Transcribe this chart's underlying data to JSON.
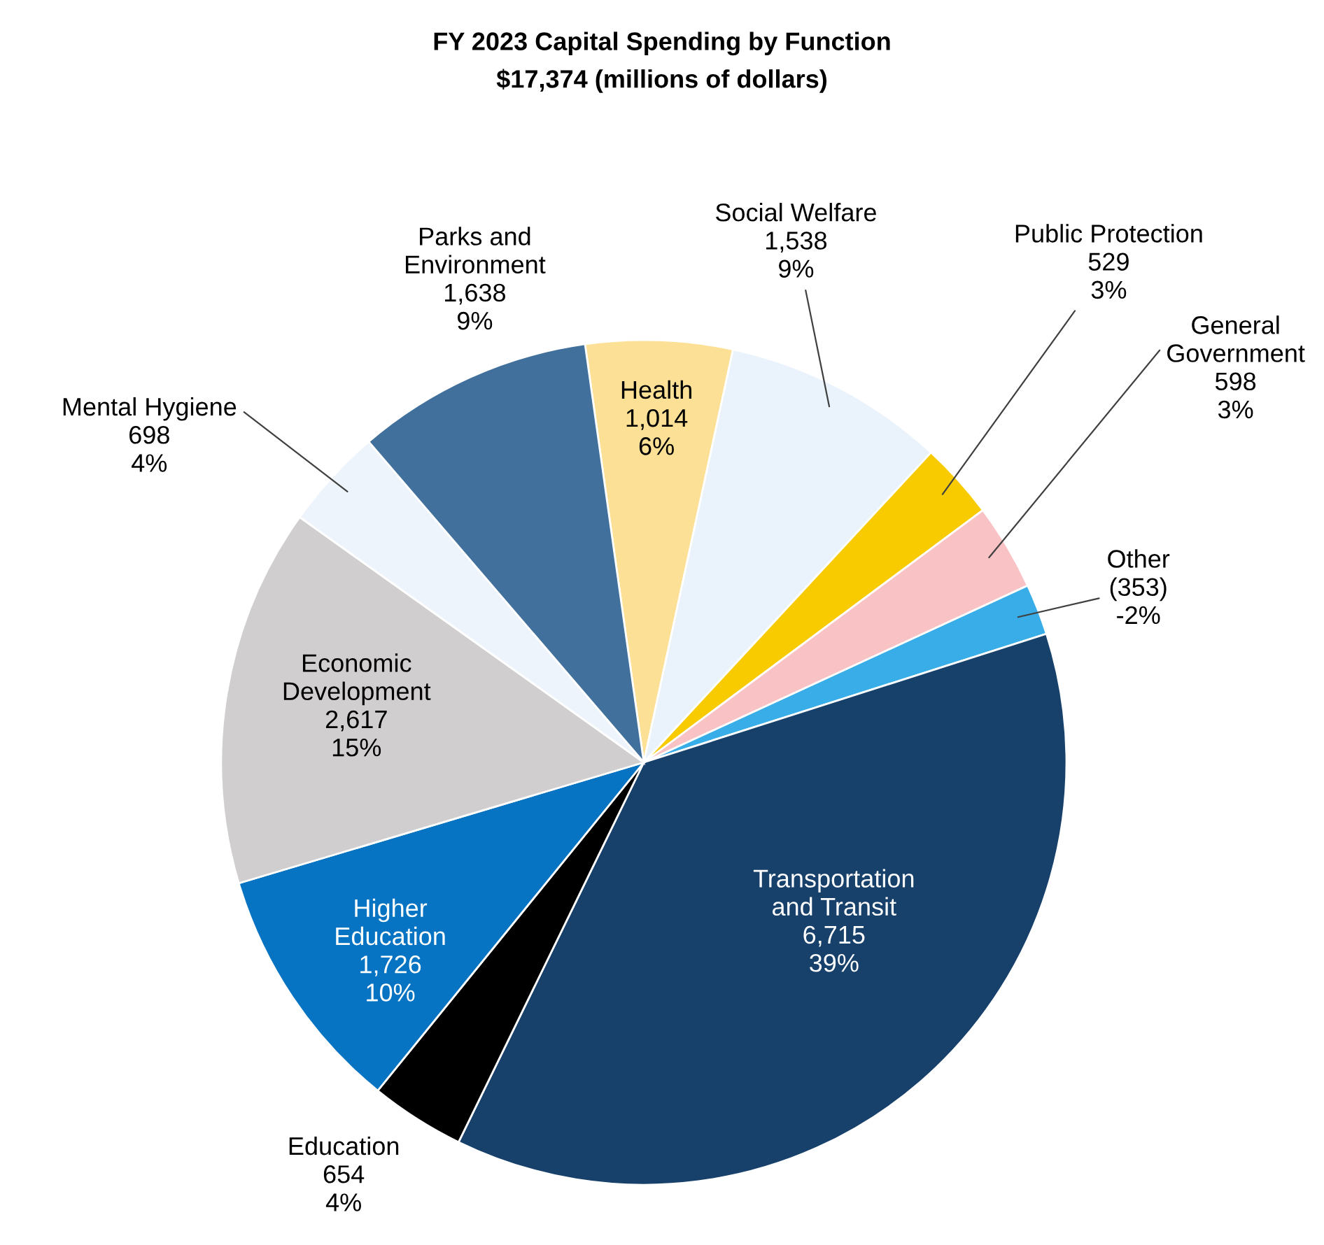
{
  "chart_data": {
    "type": "pie",
    "title": "FY 2023 Capital Spending by Function",
    "subtitle": "$17,374 (millions of dollars)",
    "categories": [
      "Health",
      "Social Welfare",
      "Public Protection",
      "General\nGovernment",
      "Other",
      "Transportation\nand Transit",
      "Education",
      "Higher\nEducation",
      "Economic\nDevelopment",
      "Mental Hygiene",
      "Parks and\nEnvironment"
    ],
    "values": [
      1014,
      1538,
      529,
      598,
      353,
      6715,
      654,
      1726,
      2617,
      698,
      1638
    ],
    "value_labels": [
      "1,014\n6%",
      "1,538\n9%",
      "529\n3%",
      "598\n3%",
      "(353)\n-2%",
      "6,715\n39%",
      "654\n4%",
      "1,726\n10%",
      "2,617\n15%",
      "698\n4%",
      "1,638\n9%"
    ],
    "colors": [
      "#fce096",
      "#eaf3fb",
      "#f8cb00",
      "#f9c3c6",
      "#38ade8",
      "#17416b",
      "#000000",
      "#0674c2",
      "#d0cece",
      "#eef4fb",
      "#40709b"
    ]
  }
}
